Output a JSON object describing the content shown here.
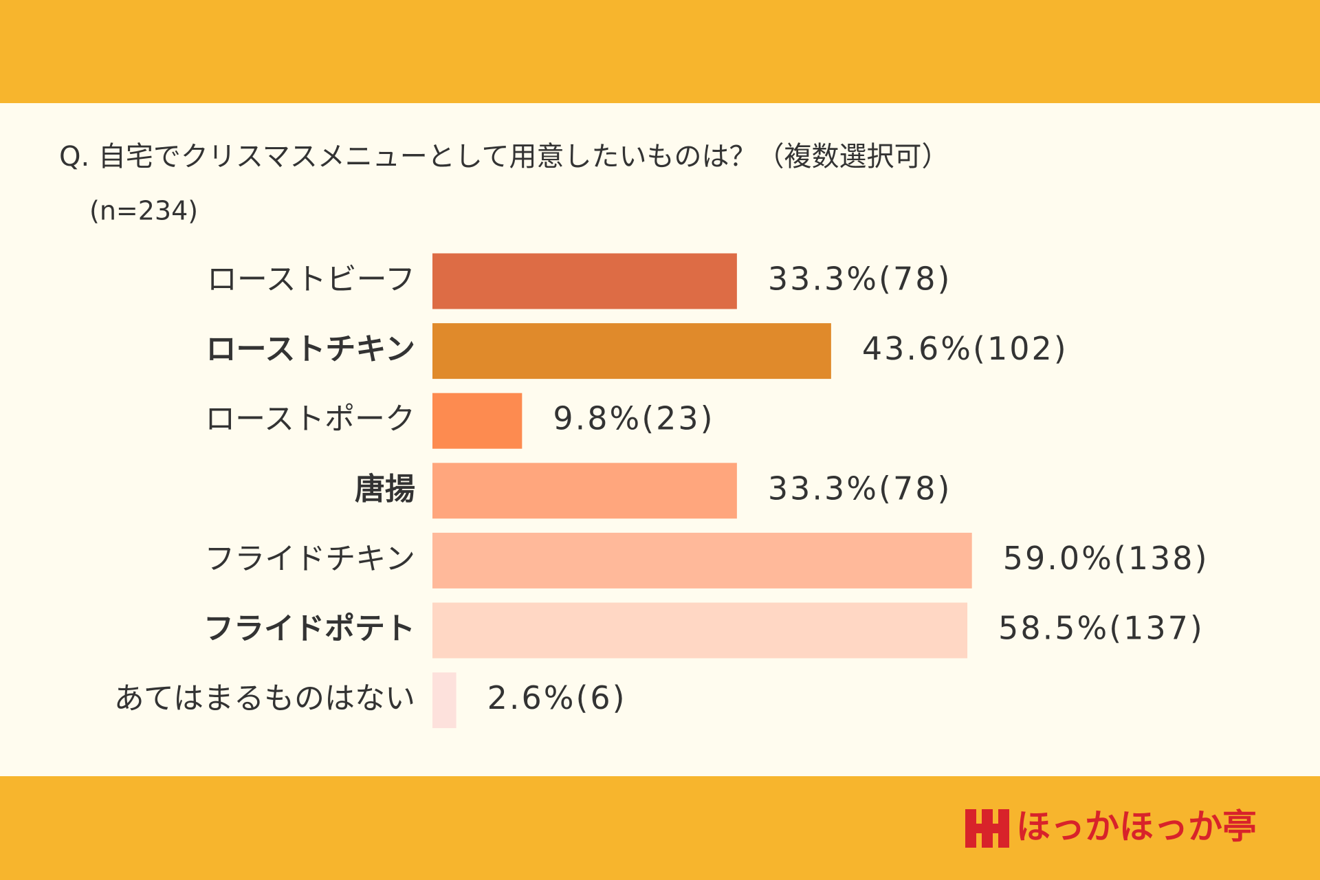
{
  "chart_data": {
    "type": "hbar",
    "title": "Q. 自宅でクリスマスメニューとして用意したいものは？（複数選択可）",
    "subtitle": "(n=234)",
    "categories": [
      "ローストビーフ",
      "ローストチキン",
      "ローストポーク",
      "唐揚",
      "フライドチキン",
      "フライドポテト",
      "あてはまるものはない"
    ],
    "values": [
      33.3,
      43.6,
      9.8,
      33.3,
      59.0,
      58.5,
      2.6
    ],
    "value_labels": [
      "33.3%(78)",
      "43.6%(102)",
      "9.8%(23)",
      "33.3%(78)",
      "59.0%(138)",
      "58.5%(137)",
      "2.6%(6)"
    ],
    "colors": [
      "#dd6c45",
      "#e08a2b",
      "#fd8b50",
      "#ffa67d",
      "#ffb99a",
      "#ffd7c4",
      "#fde1dc"
    ]
  },
  "logo": {
    "text": "ほっかほっか亭"
  }
}
